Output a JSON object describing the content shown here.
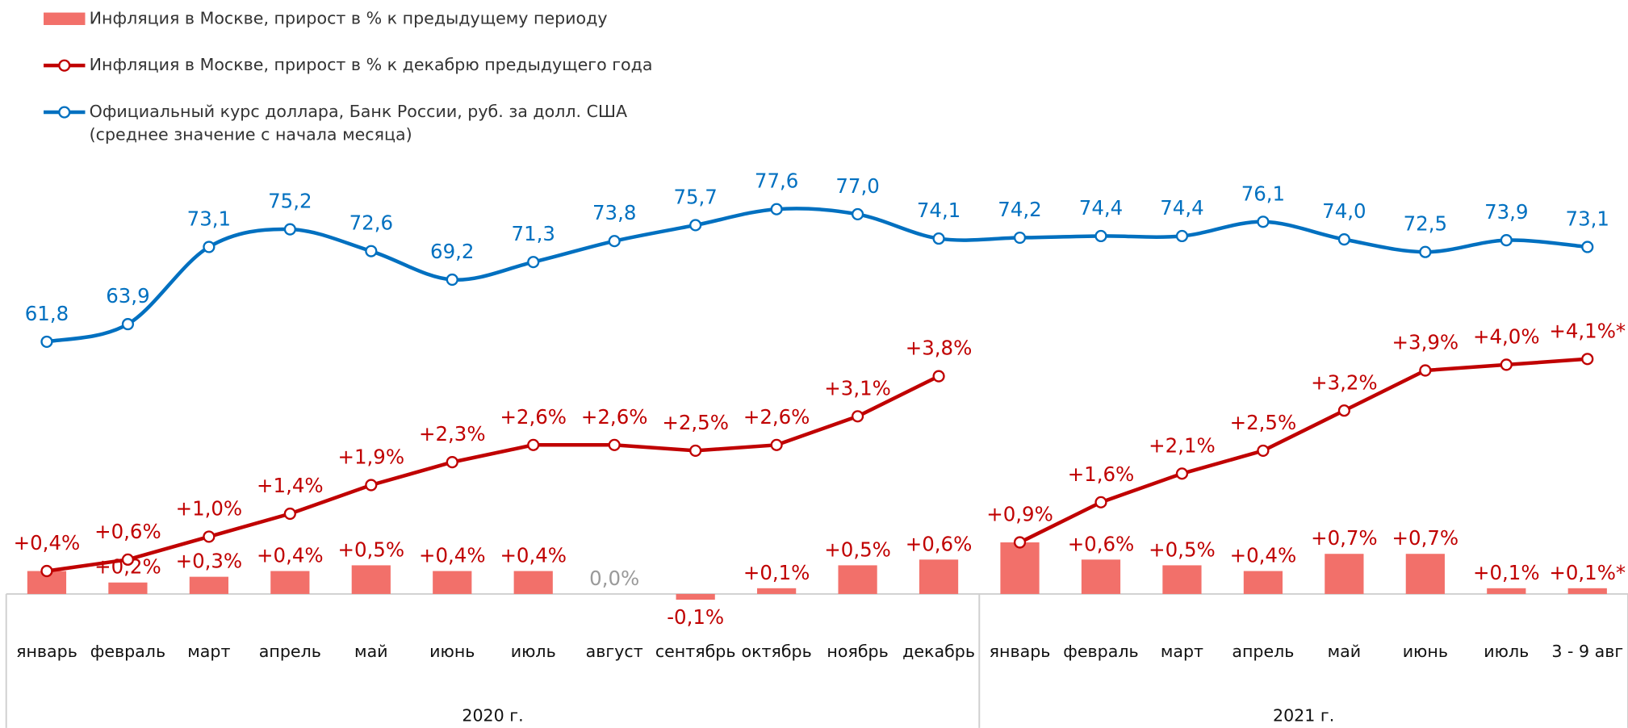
{
  "chart_data": {
    "type": "bar-line",
    "categories": [
      "январь",
      "февраль",
      "март",
      "апрель",
      "май",
      "июнь",
      "июль",
      "август",
      "сентябрь",
      "октябрь",
      "ноябрь",
      "декабрь",
      "январь",
      "февраль",
      "март",
      "апрель",
      "май",
      "июнь",
      "июль",
      "3 - 9 авг"
    ],
    "groups": [
      {
        "label": "2020 г.",
        "span": 12
      },
      {
        "label": "2021 г.",
        "span": 8
      }
    ],
    "ylim": [
      -1,
      8
    ],
    "y2lim": [
      55,
      80
    ],
    "series": [
      {
        "name": "Инфляция в Москве, прирост в % к предыдущему периоду",
        "kind": "bar",
        "color": "#f2706a",
        "label_color": "#c00000",
        "values": [
          0.4,
          0.2,
          0.3,
          0.4,
          0.5,
          0.4,
          0.4,
          0.0,
          -0.1,
          0.1,
          0.5,
          0.6,
          0.9,
          0.6,
          0.5,
          0.4,
          0.7,
          0.7,
          0.1,
          0.1
        ],
        "value_labels": [
          null,
          "+0,2%",
          "+0,3%",
          "+0,4%",
          "+0,5%",
          "+0,4%",
          "+0,4%",
          "0,0%",
          "-0,1%",
          "+0,1%",
          "+0,5%",
          "+0,6%",
          null,
          "+0,6%",
          "+0,5%",
          "+0,4%",
          "+0,7%",
          "+0,7%",
          "+0,1%",
          "+0,1%*"
        ]
      },
      {
        "name": "Инфляция в Москве, прирост в % к декабрю предыдущего года",
        "kind": "line",
        "color": "#c00000",
        "break_at_groups": true,
        "values": [
          0.4,
          0.6,
          1.0,
          1.4,
          1.9,
          2.3,
          2.6,
          2.6,
          2.5,
          2.6,
          3.1,
          3.8,
          0.9,
          1.6,
          2.1,
          2.5,
          3.2,
          3.9,
          4.0,
          4.1
        ],
        "value_labels": [
          "+0,4%",
          "+0,6%",
          "+1,0%",
          "+1,4%",
          "+1,9%",
          "+2,3%",
          "+2,6%",
          "+2,6%",
          "+2,5%",
          "+2,6%",
          "+3,1%",
          "+3,8%",
          "+0,9%",
          "+1,6%",
          "+2,1%",
          "+2,5%",
          "+3,2%",
          "+3,9%",
          "+4,0%",
          "+4,1%*"
        ]
      },
      {
        "name": "Официальный курс доллара, Банк России, руб. за долл. США\n(среднее значение с начала месяца)",
        "kind": "line",
        "color": "#0070c0",
        "axis": "y2",
        "smooth": true,
        "values": [
          61.8,
          63.9,
          73.1,
          75.2,
          72.6,
          69.2,
          71.3,
          73.8,
          75.7,
          77.6,
          77.0,
          74.1,
          74.2,
          74.4,
          74.4,
          76.1,
          74.0,
          72.5,
          73.9,
          73.1
        ],
        "value_labels": [
          "61,8",
          "63,9",
          "73,1",
          "75,2",
          "72,6",
          "69,2",
          "71,3",
          "73,8",
          "75,7",
          "77,6",
          "77,0",
          "74,1",
          "74,2",
          "74,4",
          "74,4",
          "76,1",
          "74,0",
          "72,5",
          "73,9",
          "73,1"
        ]
      }
    ]
  }
}
